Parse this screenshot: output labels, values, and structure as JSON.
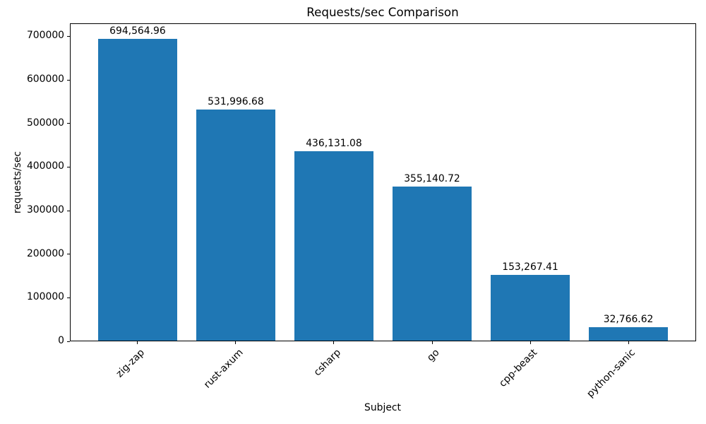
{
  "chart_data": {
    "type": "bar",
    "title": "Requests/sec Comparison",
    "xlabel": "Subject",
    "ylabel": "requests/sec",
    "categories": [
      "zig-zap",
      "rust-axum",
      "csharp",
      "go",
      "cpp-beast",
      "python-sanic"
    ],
    "values": [
      694564.96,
      531996.68,
      436131.08,
      355140.72,
      153267.41,
      32766.62
    ],
    "value_labels": [
      "694,564.96",
      "531,996.68",
      "436,131.08",
      "355,140.72",
      "153,267.41",
      "32,766.62"
    ],
    "yticks": [
      0,
      100000,
      200000,
      300000,
      400000,
      500000,
      600000,
      700000
    ],
    "ylim": [
      0,
      730000
    ],
    "bar_color": "#1f77b4",
    "x_tick_rotation_deg": 45,
    "grid": false,
    "legend": "none",
    "background_color": "#ffffff",
    "text_color": "#000000"
  }
}
